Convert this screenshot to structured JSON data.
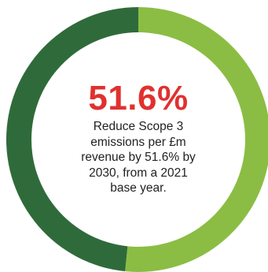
{
  "chart_data": {
    "type": "pie",
    "variant": "donut",
    "title": "",
    "value_label": "51.6%",
    "slices": [
      {
        "label": "",
        "value": 51.6,
        "color": "#8bbd44"
      },
      {
        "label": "",
        "value": 48.4,
        "color": "#2f6b3a"
      }
    ]
  },
  "caption_lines": [
    "Reduce Scope 3",
    "emissions per £m",
    "revenue by 51.6% by",
    "2030, from a 2021",
    "base year."
  ]
}
